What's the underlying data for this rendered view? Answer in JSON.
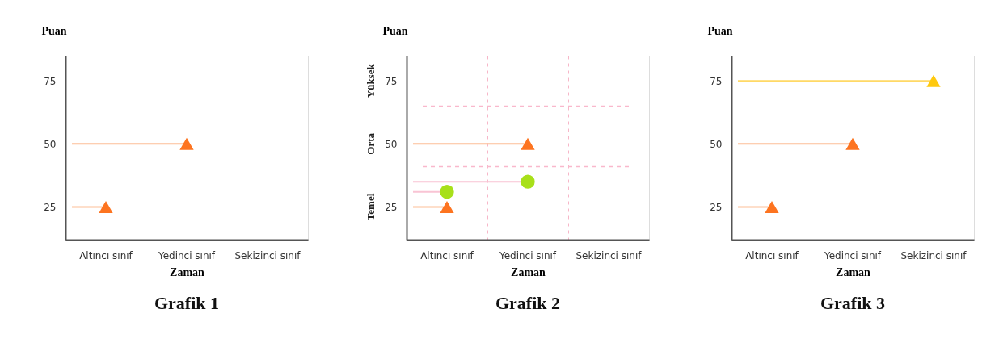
{
  "chart_data": [
    {
      "type": "scatter",
      "title": "Grafik 1",
      "xlabel": "Zaman",
      "ylabel": "Puan",
      "categories": [
        "Altıncı sınıf",
        "Yedinci sınıf",
        "Sekizinci sınıf"
      ],
      "ylim": [
        12,
        85
      ],
      "yticks": [
        25,
        50,
        75
      ],
      "marker": "triangle",
      "grid": false,
      "legend": false,
      "series": [
        {
          "color": "#fd7420",
          "values": [
            25,
            50,
            null
          ]
        }
      ],
      "ref_lines": [
        {
          "axis": "y",
          "value": 25,
          "color": "#fdbf98"
        },
        {
          "axis": "y",
          "value": 50,
          "color": "#fdbf98"
        }
      ]
    },
    {
      "type": "scatter",
      "title": "Grafik 2",
      "xlabel": "Zaman",
      "ylabel": "Puan",
      "categories": [
        "Altıncı sınıf",
        "Yedinci sınıf",
        "Sekizinci sınıf"
      ],
      "ylim": [
        12,
        85
      ],
      "yticks": [
        25,
        50,
        75
      ],
      "marker": "triangle",
      "grid": "x",
      "legend": false,
      "series": [
        {
          "color": "#fd7420",
          "values": [
            25,
            50,
            null
          ]
        },
        {
          "color": "#a8e01a",
          "values": [
            31,
            35,
            null
          ],
          "marker": "circle"
        }
      ],
      "ref_lines": [
        {
          "axis": "y",
          "value": 25,
          "color": "#fdbf98"
        },
        {
          "axis": "y",
          "value": 50,
          "color": "#fdbf98"
        },
        {
          "axis": "y",
          "value": 31,
          "color": "#f9c4d4"
        },
        {
          "axis": "y",
          "value": 35,
          "color": "#f9c4d4"
        },
        {
          "axis": "y",
          "value": 41,
          "color": "#f9b8cc",
          "line_style": "dashed"
        },
        {
          "axis": "y",
          "value": 65,
          "color": "#f9b8cc",
          "line_style": "dashed"
        }
      ],
      "annotations": [
        "Yüksek",
        "Orta",
        "Temel"
      ]
    },
    {
      "type": "scatter",
      "title": "Grafik 3",
      "xlabel": "Zaman",
      "ylabel": "Puan",
      "categories": [
        "Altıncı sınıf",
        "Yedinci sınıf",
        "Sekizinci sınıf"
      ],
      "ylim": [
        12,
        85
      ],
      "yticks": [
        25,
        50,
        75
      ],
      "marker": "triangle",
      "grid": false,
      "legend": false,
      "series": [
        {
          "color": "#fd7420",
          "values": [
            25,
            50,
            null
          ]
        },
        {
          "color": "#ffc90e",
          "values": [
            null,
            null,
            75
          ]
        }
      ],
      "ref_lines": [
        {
          "axis": "y",
          "value": 25,
          "color": "#fdbf98"
        },
        {
          "axis": "y",
          "value": 50,
          "color": "#fdbf98"
        },
        {
          "axis": "y",
          "value": 75,
          "color": "#ffd966"
        }
      ]
    }
  ]
}
